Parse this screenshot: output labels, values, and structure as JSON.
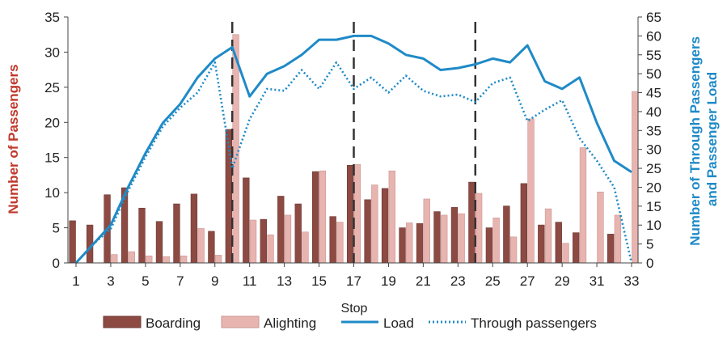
{
  "chart_data": {
    "type": "bar",
    "xlabel": "Stop",
    "ylabel": "Number of Passengers",
    "y2label_lines": [
      "Number of Through Passengers",
      "and Passenger Load"
    ],
    "ylim": [
      0,
      35
    ],
    "y2lim": [
      0,
      65
    ],
    "yticks": [
      0,
      5,
      10,
      15,
      20,
      25,
      30,
      35
    ],
    "y2ticks": [
      0,
      5,
      10,
      15,
      20,
      25,
      30,
      35,
      40,
      45,
      50,
      55,
      60,
      65
    ],
    "stops": [
      1,
      2,
      3,
      4,
      5,
      6,
      7,
      8,
      9,
      10,
      11,
      12,
      13,
      14,
      15,
      16,
      17,
      18,
      19,
      20,
      21,
      22,
      23,
      24,
      25,
      26,
      27,
      28,
      29,
      30,
      31,
      32,
      33
    ],
    "xtick_labels": [
      "1",
      "3",
      "5",
      "7",
      "9",
      "11",
      "13",
      "15",
      "17",
      "19",
      "21",
      "23",
      "25",
      "27",
      "29",
      "31",
      "33"
    ],
    "dashed_lines_at": [
      10,
      17,
      24
    ],
    "grid": false,
    "legend_position": "bottom",
    "colors": {
      "boarding": "#8c4a43",
      "alighting": "#e8b4b0",
      "load": "#1f8ac7",
      "through": "#1f8ac7",
      "dash": "#333333",
      "left_axis_title": "#c0392b",
      "right_axis_title": "#1f8ac7"
    },
    "series": [
      {
        "name": "Boarding",
        "type": "bar",
        "axis": "left",
        "values": [
          6.0,
          5.4,
          9.7,
          10.7,
          7.8,
          5.9,
          8.4,
          9.8,
          4.5,
          19.0,
          12.1,
          6.2,
          9.5,
          8.4,
          13.0,
          6.6,
          13.9,
          9.0,
          10.6,
          5.0,
          5.6,
          7.3,
          7.9,
          11.5,
          5.0,
          8.1,
          11.3,
          5.4,
          5.8,
          4.3,
          0.0,
          4.1,
          0.0
        ]
      },
      {
        "name": "Alighting",
        "type": "bar",
        "axis": "left",
        "values": [
          0.0,
          0.0,
          1.2,
          1.6,
          1.0,
          0.9,
          1.0,
          4.9,
          1.1,
          32.5,
          6.1,
          4.0,
          6.8,
          4.4,
          13.1,
          5.8,
          14.0,
          11.1,
          13.1,
          5.7,
          9.1,
          6.8,
          7.0,
          9.9,
          6.4,
          3.7,
          20.5,
          7.7,
          2.8,
          16.4,
          10.1,
          6.8,
          24.4
        ]
      },
      {
        "name": "Load",
        "type": "line",
        "axis": "right",
        "style": "solid",
        "values": [
          0,
          5,
          10,
          20,
          29,
          37,
          42,
          49,
          54,
          57,
          44,
          50,
          52,
          55,
          59,
          59,
          60,
          60,
          58,
          55,
          54,
          51,
          51.5,
          52.5,
          54,
          53,
          57.5,
          48,
          46,
          49,
          37,
          27,
          24
        ]
      },
      {
        "name": "Through passengers",
        "type": "line",
        "axis": "right",
        "style": "dotted",
        "values": [
          0,
          5,
          9,
          19,
          28,
          36,
          41,
          45,
          53,
          25,
          38,
          46,
          45.5,
          51,
          46,
          53,
          46,
          49,
          45,
          49.5,
          45.5,
          44,
          44.5,
          42.5,
          47.5,
          49,
          37.5,
          40.5,
          43,
          33,
          27,
          20,
          0
        ]
      }
    ]
  }
}
